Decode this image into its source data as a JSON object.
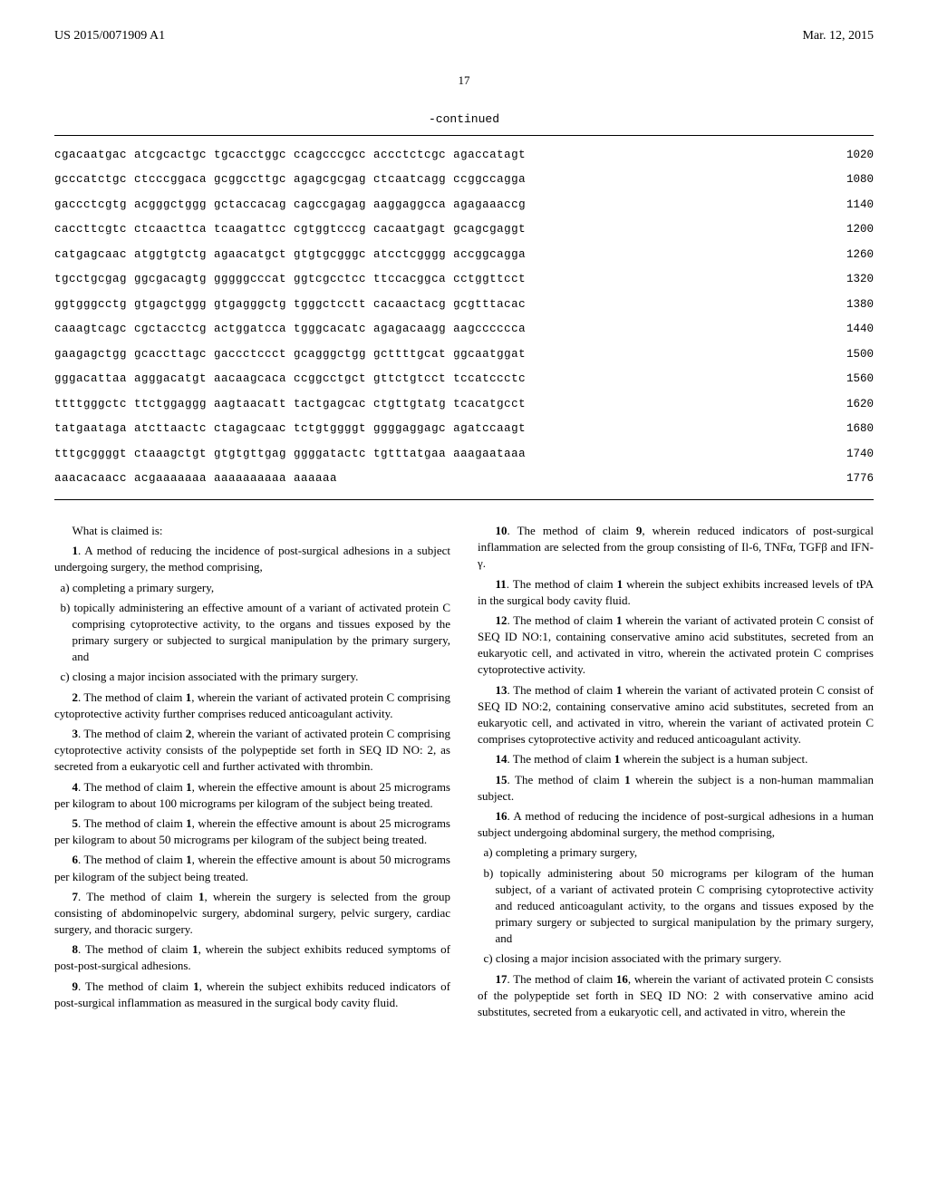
{
  "header": {
    "publication_number": "US 2015/0071909 A1",
    "publication_date": "Mar. 12, 2015"
  },
  "page_number": "17",
  "continued_label": "-continued",
  "sequence": {
    "rows": [
      {
        "text": "cgacaatgac atcgcactgc tgcacctggc ccagcccgcc accctctcgc agaccatagt",
        "num": "1020"
      },
      {
        "text": "gcccatctgc ctcccggaca gcggccttgc agagcgcgag ctcaatcagg ccggccagga",
        "num": "1080"
      },
      {
        "text": "gaccctcgtg acgggctggg gctaccacag cagccgagag aaggaggcca agagaaaccg",
        "num": "1140"
      },
      {
        "text": "caccttcgtc ctcaacttca tcaagattcc cgtggtcccg cacaatgagt gcagcgaggt",
        "num": "1200"
      },
      {
        "text": "catgagcaac atggtgtctg agaacatgct gtgtgcgggc atcctcgggg accggcagga",
        "num": "1260"
      },
      {
        "text": "tgcctgcgag ggcgacagtg gggggcccat ggtcgcctcc ttccacggca cctggttcct",
        "num": "1320"
      },
      {
        "text": "ggtgggcctg gtgagctggg gtgagggctg tgggctcctt cacaactacg gcgtttacac",
        "num": "1380"
      },
      {
        "text": "caaagtcagc cgctacctcg actggatcca tgggcacatc agagacaagg aagcccccca",
        "num": "1440"
      },
      {
        "text": "gaagagctgg gcaccttagc gaccctccct gcagggctgg gcttttgcat ggcaatggat",
        "num": "1500"
      },
      {
        "text": "gggacattaa agggacatgt aacaagcaca ccggcctgct gttctgtcct tccatccctc",
        "num": "1560"
      },
      {
        "text": "ttttgggctc ttctggaggg aagtaacatt tactgagcac ctgttgtatg tcacatgcct",
        "num": "1620"
      },
      {
        "text": "tatgaataga atcttaactc ctagagcaac tctgtggggt ggggaggagc agatccaagt",
        "num": "1680"
      },
      {
        "text": "tttgcggggt ctaaagctgt gtgtgttgag ggggatactc tgtttatgaa aaagaataaa",
        "num": "1740"
      },
      {
        "text": "aaacacaacc acgaaaaaaa aaaaaaaaaa aaaaaa",
        "num": "1776"
      }
    ]
  },
  "claims_intro": "What is claimed is:",
  "claims_left": [
    {
      "num": "1",
      "text": ". A method of reducing the incidence of post-surgical adhesions in a subject undergoing surgery, the method comprising,",
      "subs": [
        {
          "label": "a)",
          "text": "completing a primary surgery,"
        },
        {
          "label": "b)",
          "text": "topically administering an effective amount of a variant of activated protein C comprising cytoprotective activity, to the organs and tissues exposed by the primary surgery or subjected to surgical manipulation by the primary surgery, and"
        },
        {
          "label": "c)",
          "text": "closing a major incision associated with the primary surgery."
        }
      ]
    },
    {
      "num": "2",
      "text": ". The method of claim 1, wherein the variant of activated protein C comprising cytoprotective activity further comprises reduced anticoagulant activity."
    },
    {
      "num": "3",
      "text": ". The method of claim 2, wherein the variant of activated protein C comprising cytoprotective activity consists of the polypeptide set forth in SEQ ID NO: 2, as secreted from a eukaryotic cell and further activated with thrombin."
    },
    {
      "num": "4",
      "text": ". The method of claim 1, wherein the effective amount is about 25 micrograms per kilogram to about 100 micrograms per kilogram of the subject being treated."
    },
    {
      "num": "5",
      "text": ". The method of claim 1, wherein the effective amount is about 25 micrograms per kilogram to about 50 micrograms per kilogram of the subject being treated."
    },
    {
      "num": "6",
      "text": ". The method of claim 1, wherein the effective amount is about 50 micrograms per kilogram of the subject being treated."
    },
    {
      "num": "7",
      "text": ". The method of claim 1, wherein the surgery is selected from the group consisting of abdominopelvic surgery, abdominal surgery, pelvic surgery, cardiac surgery, and thoracic surgery."
    },
    {
      "num": "8",
      "text": ". The method of claim 1, wherein the subject exhibits reduced symptoms of post-post-surgical adhesions."
    },
    {
      "num": "9",
      "text": ". The method of claim 1, wherein the subject exhibits reduced indicators of post-surgical inflammation as measured in the surgical body cavity fluid."
    }
  ],
  "claims_right": [
    {
      "num": "10",
      "text": ". The method of claim 9, wherein reduced indicators of post-surgical inflammation are selected from the group consisting of Il-6, TNFα, TGFβ and IFN-γ."
    },
    {
      "num": "11",
      "text": ". The method of claim 1 wherein the subject exhibits increased levels of tPA in the surgical body cavity fluid."
    },
    {
      "num": "12",
      "text": ". The method of claim 1 wherein the variant of activated protein C consist of SEQ ID NO:1, containing conservative amino acid substitutes, secreted from an eukaryotic cell, and activated in vitro, wherein the activated protein C comprises cytoprotective activity."
    },
    {
      "num": "13",
      "text": ". The method of claim 1 wherein the variant of activated protein C consist of SEQ ID NO:2, containing conservative amino acid substitutes, secreted from an eukaryotic cell, and activated in vitro, wherein the variant of activated protein C comprises cytoprotective activity and reduced anticoagulant activity."
    },
    {
      "num": "14",
      "text": ". The method of claim 1 wherein the subject is a human subject."
    },
    {
      "num": "15",
      "text": ". The method of claim 1 wherein the subject is a non-human mammalian subject."
    },
    {
      "num": "16",
      "text": ". A method of reducing the incidence of post-surgical adhesions in a human subject undergoing abdominal surgery, the method comprising,",
      "subs": [
        {
          "label": "a)",
          "text": "completing a primary surgery,"
        },
        {
          "label": "b)",
          "text": "topically administering about 50 micrograms per kilogram of the human subject, of a variant of activated protein C comprising cytoprotective activity and reduced anticoagulant activity, to the organs and tissues exposed by the primary surgery or subjected to surgical manipulation by the primary surgery, and"
        },
        {
          "label": "c)",
          "text": "closing a major incision associated with the primary surgery."
        }
      ]
    },
    {
      "num": "17",
      "text": ". The method of claim 16, wherein the variant of activated protein C consists of the polypeptide set forth in SEQ ID NO: 2 with conservative amino acid substitutes, secreted from a eukaryotic cell, and activated in vitro, wherein the"
    }
  ]
}
